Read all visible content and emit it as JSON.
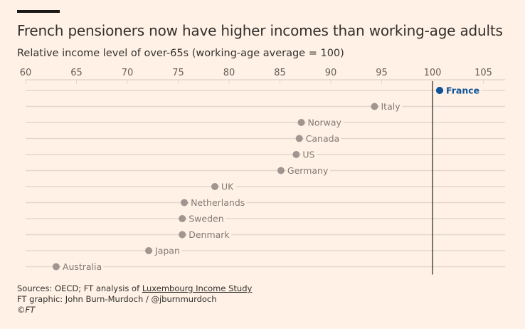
{
  "title": "French pensioners now have higher incomes than working-age adults",
  "subtitle": "Relative income level of over-65s (working-age average = 100)",
  "footer": {
    "sources_prefix": "Sources: OECD; FT analysis of ",
    "sources_link": "Luxembourg Income Study",
    "graphic": "FT graphic: John Burn-Murdoch / @jburnmurdoch",
    "copyright": "©FT"
  },
  "colors": {
    "background": "#fff1e5",
    "highlight": "#0f5499",
    "dot": "#a0958f",
    "label": "#807973",
    "gridline": "#e3d8cf",
    "reference_line": "#33302e"
  },
  "chart_data": {
    "type": "scatter",
    "title": "French pensioners now have higher incomes than working-age adults",
    "subtitle": "Relative income level of over-65s (working-age average = 100)",
    "xlim": [
      60,
      107
    ],
    "x_ticks": [
      60,
      65,
      70,
      75,
      80,
      85,
      90,
      95,
      100,
      105
    ],
    "reference_line": 100,
    "grid": true,
    "highlight": "France",
    "categories": [
      "France",
      "Italy",
      "Norway",
      "Canada",
      "US",
      "Germany",
      "UK",
      "Netherlands",
      "Sweden",
      "Denmark",
      "Japan",
      "Australia"
    ],
    "values": [
      100.7,
      94.3,
      87.1,
      86.9,
      86.6,
      85.1,
      78.6,
      75.6,
      75.4,
      75.4,
      72.1,
      63.0
    ]
  }
}
